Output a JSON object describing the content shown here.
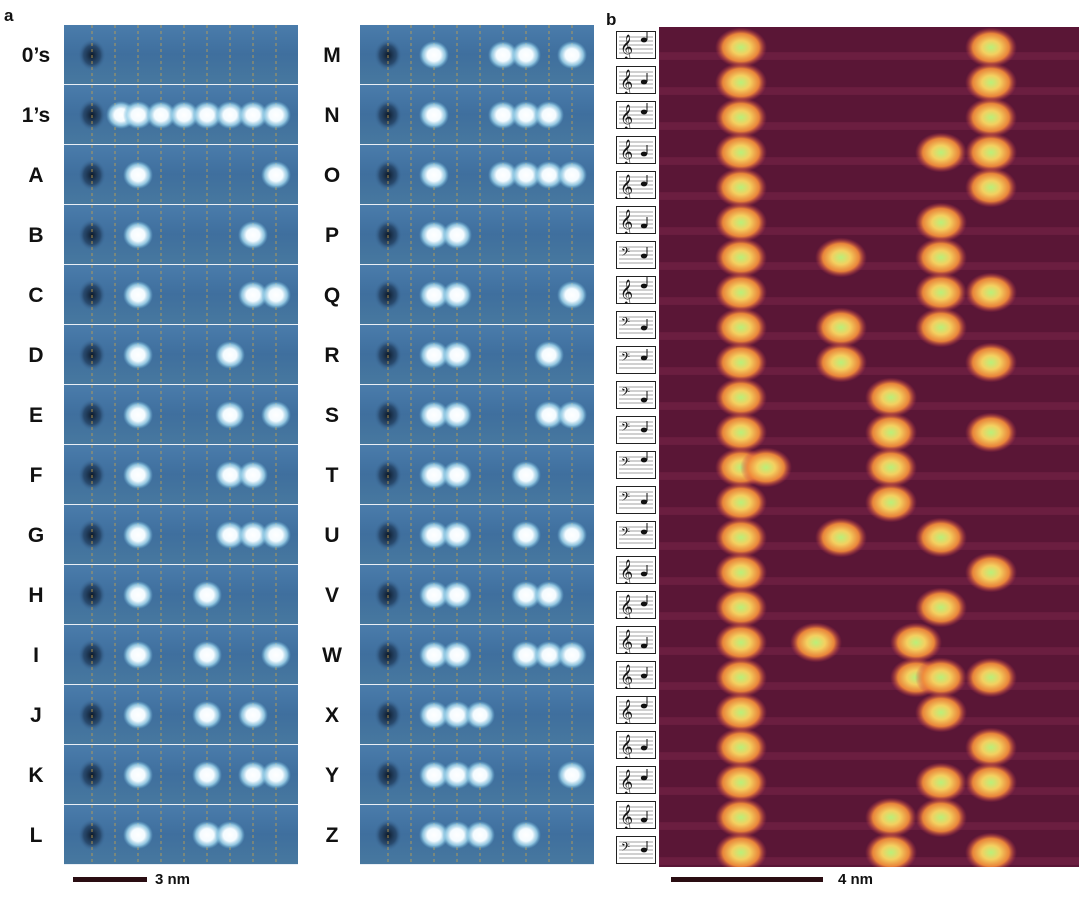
{
  "panels": {
    "a": "a",
    "b": "b"
  },
  "left_column": {
    "rows": [
      {
        "label": "0’s",
        "dots": []
      },
      {
        "label": "1’s",
        "dots": [
          1,
          2,
          3,
          4,
          5,
          6,
          7,
          8
        ]
      },
      {
        "label": "A",
        "dots": [
          2,
          8
        ]
      },
      {
        "label": "B",
        "dots": [
          2,
          7
        ]
      },
      {
        "label": "C",
        "dots": [
          2,
          7,
          8
        ]
      },
      {
        "label": "D",
        "dots": [
          2,
          6
        ]
      },
      {
        "label": "E",
        "dots": [
          2,
          6,
          8
        ]
      },
      {
        "label": "F",
        "dots": [
          2,
          6,
          7
        ]
      },
      {
        "label": "G",
        "dots": [
          2,
          6,
          7,
          8
        ]
      },
      {
        "label": "H",
        "dots": [
          2,
          5
        ]
      },
      {
        "label": "I",
        "dots": [
          2,
          5,
          8
        ]
      },
      {
        "label": "J",
        "dots": [
          2,
          5,
          7
        ]
      },
      {
        "label": "K",
        "dots": [
          2,
          5,
          7,
          8
        ]
      },
      {
        "label": "L",
        "dots": [
          2,
          5,
          6
        ]
      }
    ]
  },
  "right_column": {
    "rows": [
      {
        "label": "M",
        "dots": [
          2,
          5,
          6,
          8
        ]
      },
      {
        "label": "N",
        "dots": [
          2,
          5,
          6,
          7
        ]
      },
      {
        "label": "O",
        "dots": [
          2,
          5,
          6,
          7,
          8
        ]
      },
      {
        "label": "P",
        "dots": [
          2,
          3
        ]
      },
      {
        "label": "Q",
        "dots": [
          2,
          3,
          8
        ]
      },
      {
        "label": "R",
        "dots": [
          2,
          3,
          7
        ]
      },
      {
        "label": "S",
        "dots": [
          2,
          3,
          7,
          8
        ]
      },
      {
        "label": "T",
        "dots": [
          2,
          3,
          6
        ]
      },
      {
        "label": "U",
        "dots": [
          2,
          3,
          6,
          8
        ]
      },
      {
        "label": "V",
        "dots": [
          2,
          3,
          6,
          7
        ]
      },
      {
        "label": "W",
        "dots": [
          2,
          3,
          6,
          7,
          8
        ]
      },
      {
        "label": "X",
        "dots": [
          2,
          3,
          4
        ]
      },
      {
        "label": "Y",
        "dots": [
          2,
          3,
          4,
          8
        ]
      },
      {
        "label": "Z",
        "dots": [
          2,
          3,
          4,
          6
        ]
      }
    ]
  },
  "scalebar_a": "3 nm",
  "scalebar_b": "4 nm",
  "heatmap_rows": [
    [
      1,
      6
    ],
    [
      1,
      6
    ],
    [
      1,
      6
    ],
    [
      1,
      5,
      6
    ],
    [
      1,
      6
    ],
    [
      1,
      5
    ],
    [
      1,
      3,
      5
    ],
    [
      1,
      5,
      6
    ],
    [
      1,
      3,
      5
    ],
    [
      1,
      3,
      6
    ],
    [
      1,
      4
    ],
    [
      1,
      4,
      6
    ],
    [
      1,
      1.5,
      4
    ],
    [
      1,
      4
    ],
    [
      1,
      3,
      5
    ],
    [
      1,
      6
    ],
    [
      1,
      5
    ],
    [
      1,
      2.5,
      4.5
    ],
    [
      1,
      4.5,
      5,
      6
    ],
    [
      1,
      5
    ],
    [
      1,
      6
    ],
    [
      1,
      5,
      6
    ],
    [
      1,
      4,
      5
    ],
    [
      1,
      4,
      6
    ]
  ],
  "clefs": [
    "treble",
    "treble",
    "treble",
    "treble",
    "treble",
    "treble",
    "bass",
    "treble",
    "bass",
    "bass",
    "bass",
    "bass",
    "bass",
    "bass",
    "bass",
    "treble",
    "treble",
    "treble",
    "treble",
    "treble",
    "treble",
    "treble",
    "treble",
    "bass"
  ],
  "colors": {
    "stm_bg": "#3f6f9e",
    "dot": "#ffffff",
    "heat_bg": "#5a1636",
    "heat_dot": "#f0b24a"
  }
}
